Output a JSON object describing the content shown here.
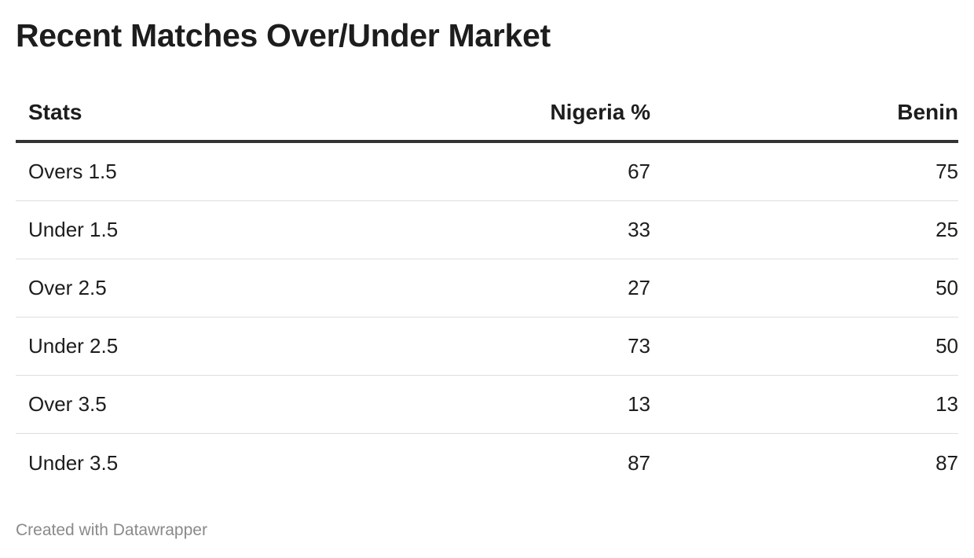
{
  "chart_data": {
    "type": "table",
    "title": "Recent Matches Over/Under Market",
    "columns": [
      "Stats",
      "Nigeria %",
      "Benin"
    ],
    "rows": [
      {
        "stat": "Overs 1.5",
        "nigeria": 67,
        "benin": 75
      },
      {
        "stat": "Under 1.5",
        "nigeria": 33,
        "benin": 25
      },
      {
        "stat": "Over 2.5",
        "nigeria": 27,
        "benin": 50
      },
      {
        "stat": "Under 2.5",
        "nigeria": 73,
        "benin": 50
      },
      {
        "stat": "Over 3.5",
        "nigeria": 13,
        "benin": 13
      },
      {
        "stat": "Under 3.5",
        "nigeria": 87,
        "benin": 87
      }
    ]
  },
  "footer": "Created with Datawrapper"
}
